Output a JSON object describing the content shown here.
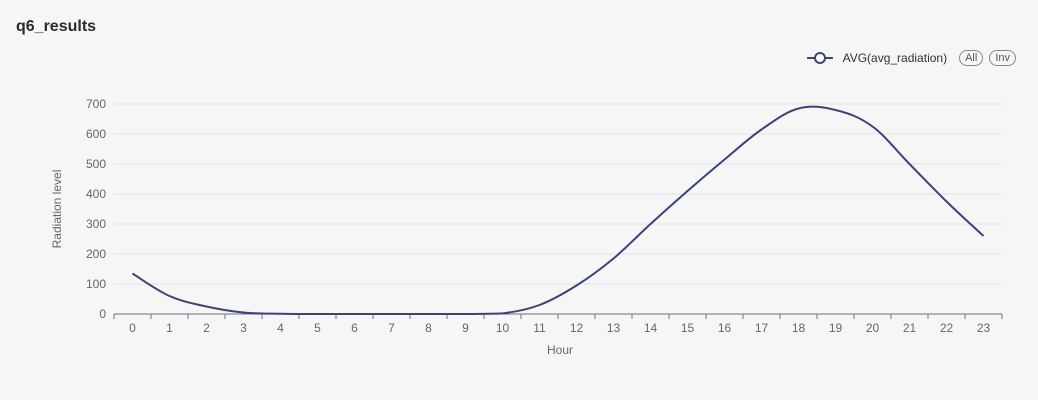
{
  "title": "q6_results",
  "legend": {
    "series_label": "AVG(avg_radiation)",
    "all_button": "All",
    "inv_button": "Inv"
  },
  "colors": {
    "series": "#3b4477",
    "grid": "#e0e3ea",
    "axis": "#6e7079"
  },
  "chart_data": {
    "type": "line",
    "xlabel": "Hour",
    "ylabel": "Radiation level",
    "categories": [
      "0",
      "1",
      "2",
      "3",
      "4",
      "5",
      "6",
      "7",
      "8",
      "9",
      "10",
      "11",
      "12",
      "13",
      "14",
      "15",
      "16",
      "17",
      "18",
      "19",
      "20",
      "21",
      "22",
      "23"
    ],
    "ylim": [
      0,
      700
    ],
    "yticks": [
      0,
      100,
      200,
      300,
      400,
      500,
      600,
      700
    ],
    "grid": true,
    "legend_position": "top-right",
    "series": [
      {
        "name": "AVG(avg_radiation)",
        "values": [
          135,
          60,
          25,
          5,
          1,
          0,
          0,
          0,
          0,
          0,
          2,
          30,
          95,
          185,
          300,
          410,
          515,
          615,
          685,
          680,
          625,
          500,
          375,
          260
        ]
      }
    ]
  }
}
